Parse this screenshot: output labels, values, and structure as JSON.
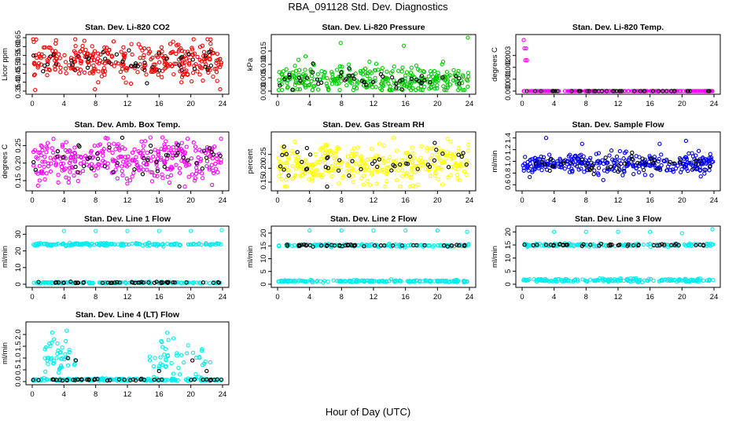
{
  "title": "RBA_091128  Std. Dev. Diagnostics",
  "xlabel": "Hour of Day (UTC)",
  "chart_data": [
    {
      "id": "co2",
      "type": "scatter",
      "title": "Stan. Dev. Li-820 CO2",
      "ylabel": "Licor ppm",
      "xlim": [
        0,
        24
      ],
      "ylim": [
        0.35,
        0.65
      ],
      "yticks": [
        "0.35",
        "0.40",
        "0.45",
        "0.50",
        "0.55",
        "0.60",
        "0.65"
      ],
      "ytick_values": [
        0.35,
        0.4,
        0.45,
        0.5,
        0.55,
        0.6,
        0.65
      ],
      "xticks": [
        "0",
        "4",
        "8",
        "12",
        "16",
        "20",
        "24"
      ],
      "series": [
        {
          "name": "red",
          "color": "#ff0000",
          "center": 0.52,
          "spread": 0.05,
          "n": 320,
          "outliers": [
            [
              0.5,
              0.64
            ],
            [
              7.9,
              0.36
            ],
            [
              22.5,
              0.64
            ],
            [
              23.7,
              0.36
            ]
          ]
        },
        {
          "name": "black",
          "color": "#000000",
          "center": 0.51,
          "spread": 0.04,
          "n": 45
        }
      ]
    },
    {
      "id": "pressure",
      "type": "scatter",
      "title": "Stan. Dev. Li-820 Pressure",
      "ylabel": "kPa",
      "xlim": [
        0,
        24
      ],
      "ylim": [
        0,
        0.02
      ],
      "yticks": [
        "0.000",
        "0.005",
        "0.010",
        "0.015"
      ],
      "ytick_values": [
        0,
        0.005,
        0.01,
        0.015
      ],
      "xticks": [
        "0",
        "4",
        "8",
        "12",
        "16",
        "20",
        "24"
      ],
      "series": [
        {
          "name": "green",
          "color": "#00cc00",
          "center": 0.004,
          "spread": 0.0025,
          "n": 330,
          "outliers": [
            [
              3.5,
              0.013
            ],
            [
              7.9,
              0.018
            ],
            [
              11.5,
              0.011
            ],
            [
              15.8,
              0.017
            ],
            [
              20.7,
              0.011
            ],
            [
              23.8,
              0.02
            ]
          ]
        },
        {
          "name": "black",
          "color": "#000000",
          "center": 0.004,
          "spread": 0.002,
          "n": 45
        }
      ]
    },
    {
      "id": "temp",
      "type": "scatter",
      "title": "Stan. Dev. Li-820 Temp.",
      "ylabel": "degrees C",
      "xlim": [
        0,
        24
      ],
      "ylim": [
        0,
        0.0045
      ],
      "yticks": [
        "0.000",
        "0.001",
        "0.002",
        "0.003"
      ],
      "ytick_values": [
        0,
        0.001,
        0.002,
        0.003
      ],
      "xticks": [
        "0",
        "4",
        "8",
        "12",
        "16",
        "20",
        "24"
      ],
      "series": [
        {
          "name": "magenta",
          "color": "#ff00ff",
          "center": 0.0,
          "spread": 0.0,
          "n": 200,
          "outliers": [
            [
              0.2,
              0.0043
            ],
            [
              0.3,
              0.0036
            ],
            [
              0.5,
              0.0036
            ],
            [
              0.6,
              0.0026
            ],
            [
              0.4,
              0.0026
            ]
          ]
        },
        {
          "name": "black",
          "color": "#000000",
          "center": 0.0,
          "spread": 0.0,
          "n": 45
        }
      ]
    },
    {
      "id": "boxtemp",
      "type": "scatter",
      "title": "Stan. Dev. Amb. Box Temp.",
      "ylabel": "degrees C",
      "xlim": [
        0,
        24
      ],
      "ylim": [
        0.13,
        0.28
      ],
      "yticks": [
        "0.15",
        "0.20",
        "0.25"
      ],
      "ytick_values": [
        0.15,
        0.2,
        0.25
      ],
      "xticks": [
        "0",
        "4",
        "8",
        "12",
        "16",
        "20",
        "24"
      ],
      "series": [
        {
          "name": "magenta",
          "color": "#ff00ff",
          "center": 0.205,
          "spread": 0.03,
          "n": 330,
          "outliers": []
        },
        {
          "name": "black",
          "color": "#000000",
          "center": 0.205,
          "spread": 0.03,
          "n": 45
        }
      ]
    },
    {
      "id": "rh",
      "type": "scatter",
      "title": "Stan. Dev. Gas Stream RH",
      "ylabel": "percent",
      "xlim": [
        0,
        24
      ],
      "ylim": [
        0.13,
        0.32
      ],
      "yticks": [
        "0.15",
        "0.20",
        "0.25"
      ],
      "ytick_values": [
        0.15,
        0.2,
        0.25
      ],
      "xticks": [
        "0",
        "4",
        "8",
        "12",
        "16",
        "20",
        "24"
      ],
      "series": [
        {
          "name": "yellow",
          "color": "#ffff00",
          "center": 0.215,
          "spread": 0.035,
          "n": 330,
          "outliers": []
        },
        {
          "name": "black",
          "color": "#000000",
          "center": 0.215,
          "spread": 0.035,
          "n": 45
        }
      ]
    },
    {
      "id": "sampleflow",
      "type": "scatter",
      "title": "Stan. Dev. Sample Flow",
      "ylabel": "ml/min",
      "xlim": [
        0,
        24
      ],
      "ylim": [
        0.55,
        1.45
      ],
      "yticks": [
        "0.6",
        "0.8",
        "1.0",
        "1.2",
        "1.4"
      ],
      "ytick_values": [
        0.6,
        0.8,
        1.0,
        1.2,
        1.4
      ],
      "xticks": [
        "0",
        "4",
        "8",
        "12",
        "16",
        "20",
        "24"
      ],
      "series": [
        {
          "name": "blue",
          "color": "#0000ee",
          "center": 0.95,
          "spread": 0.09,
          "n": 330,
          "outliers": [
            [
              3.0,
              1.4
            ],
            [
              7.5,
              1.3
            ],
            [
              17.2,
              1.3
            ],
            [
              20.5,
              1.35
            ]
          ]
        },
        {
          "name": "black",
          "color": "#000000",
          "center": 0.93,
          "spread": 0.07,
          "n": 45
        }
      ]
    },
    {
      "id": "line1",
      "type": "scatter",
      "title": "Stan. Dev. Line 1 Flow",
      "ylabel": "ml/min",
      "xlim": [
        0,
        24
      ],
      "ylim": [
        0,
        33
      ],
      "yticks": [
        "0",
        "10",
        "20",
        "30"
      ],
      "ytick_values": [
        0,
        10,
        20,
        30
      ],
      "xticks": [
        "0",
        "4",
        "8",
        "12",
        "16",
        "20",
        "24"
      ],
      "series": [
        {
          "name": "cyan-high",
          "color": "#00eeee",
          "center": 24,
          "spread": 0.4,
          "n": 180,
          "outliers": [
            [
              4.0,
              32
            ],
            [
              8.0,
              32
            ],
            [
              12.0,
              32
            ],
            [
              16.0,
              32
            ],
            [
              20.0,
              32
            ],
            [
              23.9,
              32.5
            ]
          ]
        },
        {
          "name": "cyan-low",
          "color": "#00eeee",
          "center": 1.0,
          "spread": 0.2,
          "n": 180
        },
        {
          "name": "black",
          "color": "#000000",
          "center": 1.0,
          "spread": 0.2,
          "n": 45
        }
      ]
    },
    {
      "id": "line2",
      "type": "scatter",
      "title": "Stan. Dev. Line 2 Flow",
      "ylabel": "ml/min",
      "xlim": [
        0,
        24
      ],
      "ylim": [
        0,
        21.5
      ],
      "yticks": [
        "0",
        "5",
        "10",
        "15",
        "20"
      ],
      "ytick_values": [
        0,
        5,
        10,
        15,
        20
      ],
      "xticks": [
        "0",
        "4",
        "8",
        "12",
        "16",
        "20",
        "24"
      ],
      "series": [
        {
          "name": "cyan-high",
          "color": "#00eeee",
          "center": 15.2,
          "spread": 0.25,
          "n": 150,
          "outliers": [
            [
              4.0,
              21
            ],
            [
              8.0,
              21
            ],
            [
              12.0,
              21
            ],
            [
              16.0,
              21
            ],
            [
              20.0,
              21
            ],
            [
              23.7,
              20.5
            ]
          ]
        },
        {
          "name": "cyan-low",
          "color": "#00eeee",
          "center": 1.2,
          "spread": 0.2,
          "n": 180
        },
        {
          "name": "black",
          "color": "#000000",
          "center": 15.2,
          "spread": 0.2,
          "n": 45
        }
      ]
    },
    {
      "id": "line3",
      "type": "scatter",
      "title": "Stan. Dev. Line 3 Flow",
      "ylabel": "ml/min",
      "xlim": [
        0,
        24
      ],
      "ylim": [
        0,
        21
      ],
      "yticks": [
        "0",
        "5",
        "10",
        "15",
        "20"
      ],
      "ytick_values": [
        0,
        5,
        10,
        15,
        20
      ],
      "xticks": [
        "0",
        "4",
        "8",
        "12",
        "16",
        "20",
        "24"
      ],
      "series": [
        {
          "name": "cyan-high",
          "color": "#00eeee",
          "center": 15.0,
          "spread": 0.3,
          "n": 150,
          "outliers": [
            [
              4.0,
              20
            ],
            [
              8.0,
              20
            ],
            [
              12.0,
              20
            ],
            [
              16.0,
              20
            ],
            [
              20.0,
              19.5
            ],
            [
              23.8,
              21
            ]
          ]
        },
        {
          "name": "cyan-low",
          "color": "#00eeee",
          "center": 1.5,
          "spread": 0.3,
          "n": 180
        },
        {
          "name": "black",
          "color": "#000000",
          "center": 15.0,
          "spread": 0.2,
          "n": 45
        }
      ]
    },
    {
      "id": "line4",
      "type": "scatter",
      "title": "Stan. Dev. Line 4 (LT) Flow",
      "ylabel": "ml/min",
      "xlim": [
        0,
        24
      ],
      "ylim": [
        0,
        2.4
      ],
      "yticks": [
        "0.0",
        "0.5",
        "1.0",
        "1.5",
        "2.0"
      ],
      "ytick_values": [
        0,
        0.5,
        1.0,
        1.5,
        2.0
      ],
      "xticks": [
        "0",
        "4",
        "8",
        "12",
        "16",
        "20",
        "24"
      ],
      "series": [
        {
          "name": "cyan-low",
          "color": "#00eeee",
          "center": 0.08,
          "spread": 0.03,
          "n": 200
        },
        {
          "name": "cyan-scatter",
          "color": "#00eeee",
          "center": 1.0,
          "spread": 0.45,
          "n": 90,
          "ranges": [
            [
              1.5,
              5.5
            ],
            [
              14.5,
              22.5
            ]
          ]
        },
        {
          "name": "black",
          "color": "#000000",
          "center": 0.08,
          "spread": 0.02,
          "n": 45,
          "outliers": [
            [
              4.5,
              1.0
            ],
            [
              5.5,
              0.9
            ],
            [
              16.0,
              0.45
            ],
            [
              20.2,
              0.9
            ],
            [
              22.0,
              0.45
            ]
          ]
        }
      ]
    }
  ]
}
